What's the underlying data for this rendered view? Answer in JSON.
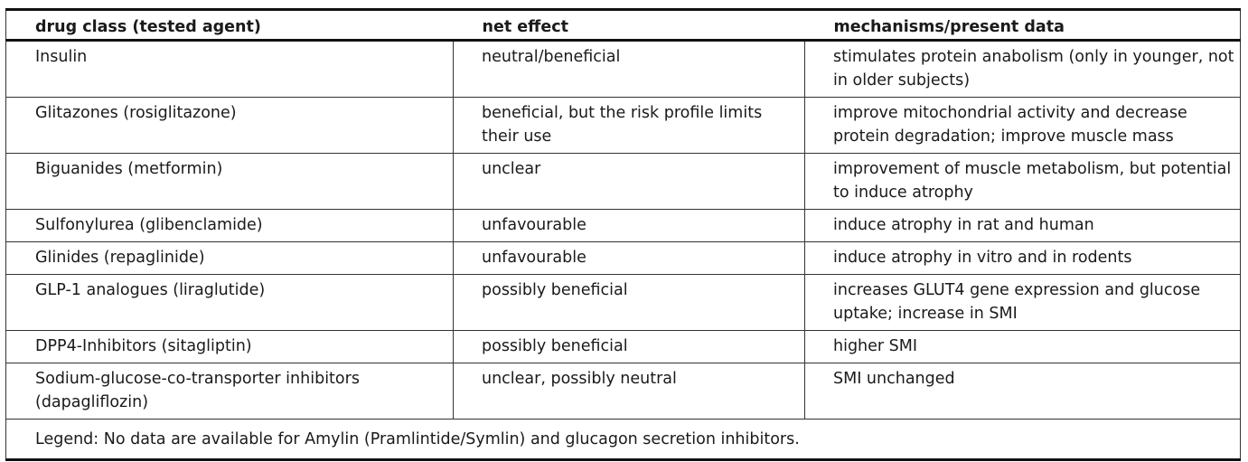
{
  "table": {
    "headers": [
      "drug class (tested agent)",
      "net effect",
      "mechanisms/present data"
    ],
    "rows": [
      {
        "drug_class": "Insulin",
        "net_effect": "neutral/beneficial",
        "mechanism": "stimulates protein anabolism (only in younger, not in older subjects)"
      },
      {
        "drug_class": "Glitazones (rosiglitazone)",
        "net_effect": "beneficial, but the risk profile limits their use",
        "mechanism": "improve mitochondrial activity and decrease protein degradation; improve muscle mass"
      },
      {
        "drug_class": "Biguanides (metformin)",
        "net_effect": "unclear",
        "mechanism": "improvement of muscle metabolism, but potential to induce atrophy"
      },
      {
        "drug_class": "Sulfonylurea (glibenclamide)",
        "net_effect": "unfavourable",
        "mechanism": "induce atrophy in rat and human"
      },
      {
        "drug_class": "Glinides (repaglinide)",
        "net_effect": "unfavourable",
        "mechanism": "induce atrophy in vitro and in rodents"
      },
      {
        "drug_class": "GLP-1 analogues (liraglutide)",
        "net_effect": "possibly beneficial",
        "mechanism": "increases GLUT4 gene expression and glucose uptake; increase in SMI"
      },
      {
        "drug_class": "DPP4-Inhibitors (sitagliptin)",
        "net_effect": "possibly beneficial",
        "mechanism": "higher SMI"
      },
      {
        "drug_class": "Sodium-glucose-co-transporter inhibitors (dapagliflozin)",
        "net_effect": "unclear, possibly neutral",
        "mechanism": "SMI unchanged"
      }
    ],
    "legend": "Legend: No data are available for Amylin (Pramlintide/Symlin) and glucagon secretion inhibitors."
  }
}
